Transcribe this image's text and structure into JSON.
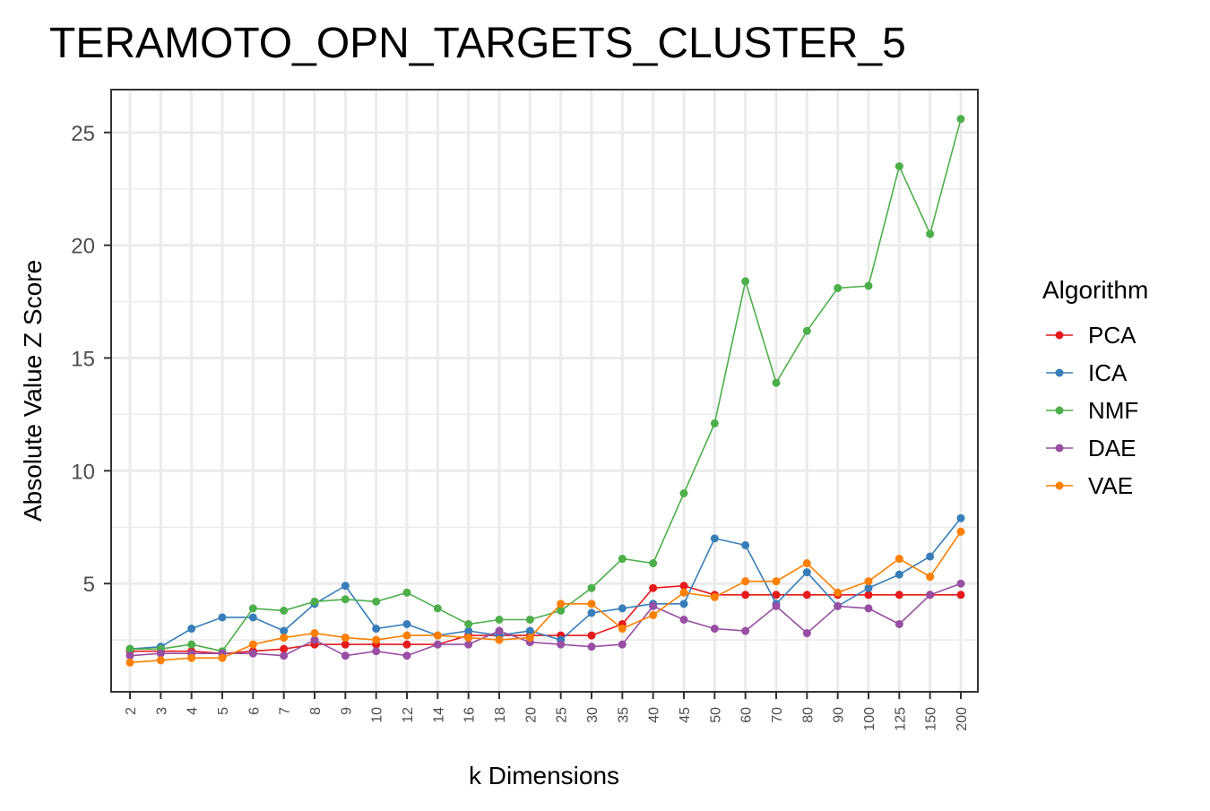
{
  "chart_data": {
    "type": "line",
    "title": "TERAMOTO_OPN_TARGETS_CLUSTER_5",
    "xlabel": "k Dimensions",
    "ylabel": "Absolute Value Z Score",
    "categories": [
      "2",
      "3",
      "4",
      "5",
      "6",
      "7",
      "8",
      "9",
      "10",
      "12",
      "14",
      "16",
      "18",
      "20",
      "25",
      "30",
      "35",
      "40",
      "45",
      "50",
      "60",
      "70",
      "80",
      "90",
      "100",
      "125",
      "150",
      "200"
    ],
    "ylim": [
      0.2,
      26.9
    ],
    "yticks": [
      5,
      10,
      15,
      20,
      25
    ],
    "grid": true,
    "legend": {
      "title": "Algorithm",
      "position": "right"
    },
    "series": [
      {
        "name": "PCA",
        "color": "#e41a1c",
        "values": [
          2.0,
          2.0,
          2.0,
          1.9,
          2.0,
          2.1,
          2.3,
          2.3,
          2.3,
          2.3,
          2.3,
          2.7,
          2.7,
          2.7,
          2.7,
          2.7,
          3.2,
          4.8,
          4.9,
          4.5,
          4.5,
          4.5,
          4.5,
          4.5,
          4.5,
          4.5,
          4.5,
          4.5
        ]
      },
      {
        "name": "ICA",
        "color": "#377eb8",
        "values": [
          2.1,
          2.2,
          3.0,
          3.5,
          3.5,
          2.9,
          4.1,
          4.9,
          3.0,
          3.2,
          2.7,
          2.9,
          2.7,
          2.9,
          2.5,
          3.7,
          3.9,
          4.1,
          4.1,
          7.0,
          6.7,
          4.1,
          5.5,
          4.0,
          4.8,
          5.4,
          6.2,
          7.9
        ]
      },
      {
        "name": "NMF",
        "color": "#4daf4a",
        "values": [
          2.1,
          2.1,
          2.3,
          2.0,
          3.9,
          3.8,
          4.2,
          4.3,
          4.2,
          4.6,
          3.9,
          3.2,
          3.4,
          3.4,
          3.8,
          4.8,
          6.1,
          5.9,
          9.0,
          12.1,
          18.4,
          13.9,
          16.2,
          18.1,
          18.2,
          23.5,
          20.5,
          25.6
        ]
      },
      {
        "name": "DAE",
        "color": "#984ea3",
        "values": [
          1.8,
          1.9,
          1.9,
          1.9,
          1.9,
          1.8,
          2.5,
          1.8,
          2.0,
          1.8,
          2.3,
          2.3,
          2.9,
          2.4,
          2.3,
          2.2,
          2.3,
          4.0,
          3.4,
          3.0,
          2.9,
          4.0,
          2.8,
          4.0,
          3.9,
          3.2,
          4.5,
          5.0
        ]
      },
      {
        "name": "VAE",
        "color": "#ff7f00",
        "values": [
          1.5,
          1.6,
          1.7,
          1.7,
          2.3,
          2.6,
          2.8,
          2.6,
          2.5,
          2.7,
          2.7,
          2.6,
          2.5,
          2.6,
          4.1,
          4.1,
          3.0,
          3.6,
          4.6,
          4.4,
          5.1,
          5.1,
          5.9,
          4.6,
          5.1,
          6.1,
          5.3,
          7.3
        ]
      }
    ]
  }
}
